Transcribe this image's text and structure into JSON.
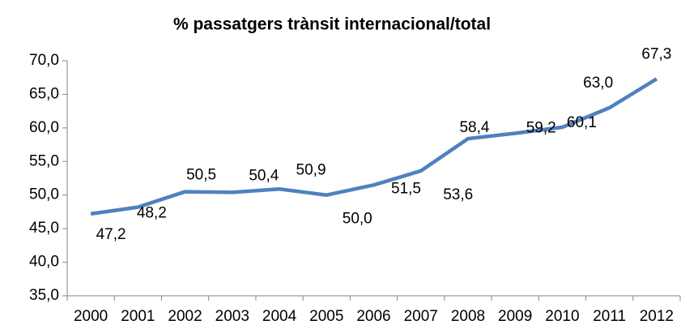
{
  "chart_data": {
    "type": "line",
    "title": "%  passatgers trànsit internacional/total",
    "categories": [
      "2000",
      "2001",
      "2002",
      "2003",
      "2004",
      "2005",
      "2006",
      "2007",
      "2008",
      "2009",
      "2010",
      "2011",
      "2012"
    ],
    "series": [
      {
        "name": null,
        "color": "#4f81bd",
        "values": [
          47.2,
          48.2,
          50.5,
          50.4,
          50.9,
          50.0,
          51.5,
          53.6,
          58.4,
          59.2,
          60.1,
          63.0,
          67.3
        ],
        "value_labels": [
          "47,2",
          "48,2",
          "50,5",
          "50,4",
          "50,9",
          "50,0",
          "51,5",
          "53,6",
          "58,4",
          "59,2",
          "60,1",
          "63,0",
          "67,3"
        ]
      }
    ],
    "ylim": [
      35,
      70
    ],
    "yticks": [
      {
        "value": 35,
        "label": "35,0"
      },
      {
        "value": 40,
        "label": "40,0"
      },
      {
        "value": 45,
        "label": "45,0"
      },
      {
        "value": 50,
        "label": "50,0"
      },
      {
        "value": 55,
        "label": "55,0"
      },
      {
        "value": 60,
        "label": "60,0"
      },
      {
        "value": 65,
        "label": "65,0"
      },
      {
        "value": 70,
        "label": "70,0"
      }
    ],
    "grid": false
  }
}
